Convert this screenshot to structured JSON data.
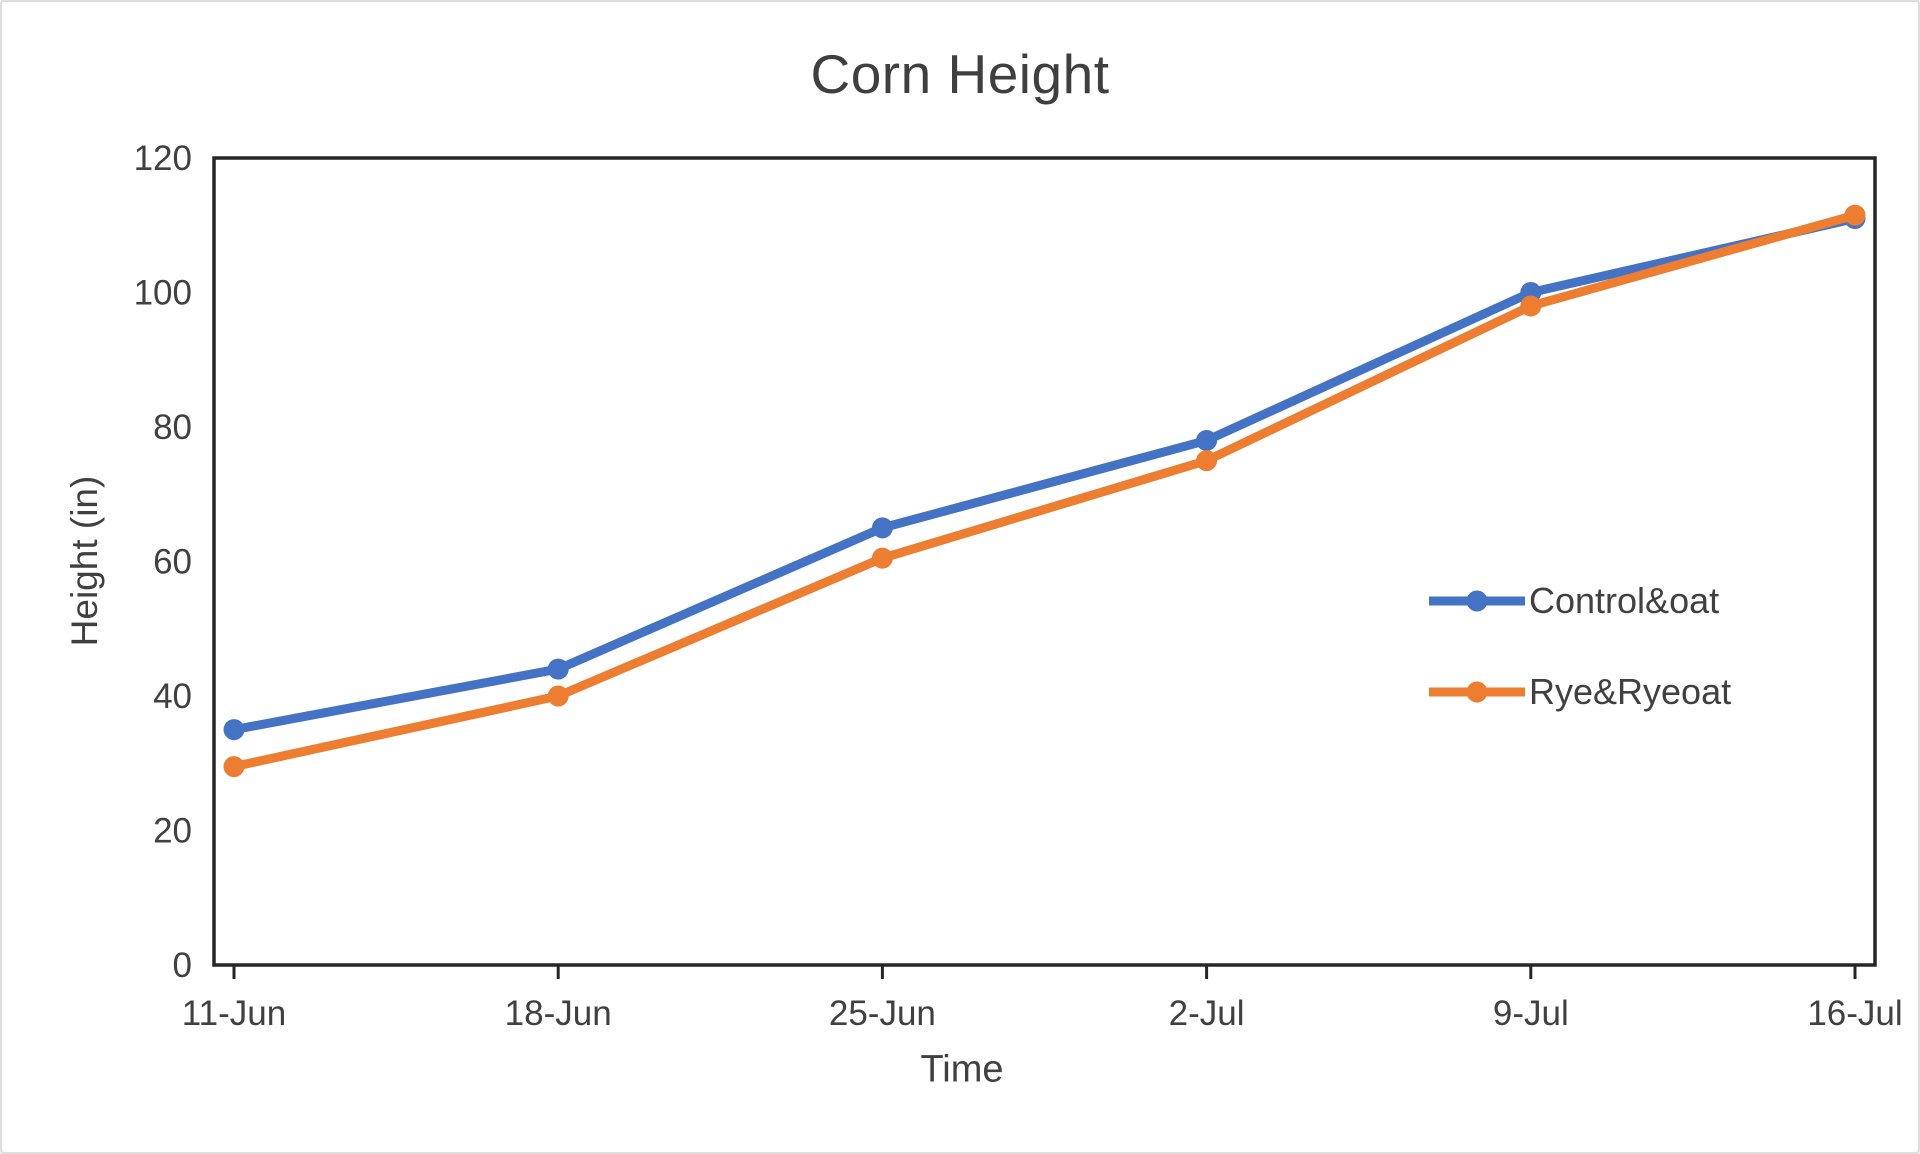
{
  "chart_data": {
    "type": "line",
    "title": "Corn Height",
    "xlabel": "Time",
    "ylabel": "Height (in)",
    "categories": [
      "11-Jun",
      "18-Jun",
      "25-Jun",
      "2-Jul",
      "9-Jul",
      "16-Jul"
    ],
    "series": [
      {
        "name": "Control&oat",
        "color": "#4472C4",
        "values": [
          35,
          44,
          65,
          78,
          100,
          111
        ]
      },
      {
        "name": "Rye&Ryeoat",
        "color": "#ED7D31",
        "values": [
          29.5,
          40,
          60.5,
          75,
          98,
          111.5
        ]
      }
    ],
    "ylim": [
      0,
      120
    ],
    "ytick_step": 20,
    "yticks": [
      "0",
      "20",
      "40",
      "60",
      "80",
      "100",
      "120"
    ],
    "grid": false,
    "marker": "circle",
    "legend_position": "inside-right-middle"
  },
  "colors": {
    "axis": "#262626",
    "tick_text": "#404040",
    "background": "#ffffff",
    "canvas_border": "#dedede"
  }
}
